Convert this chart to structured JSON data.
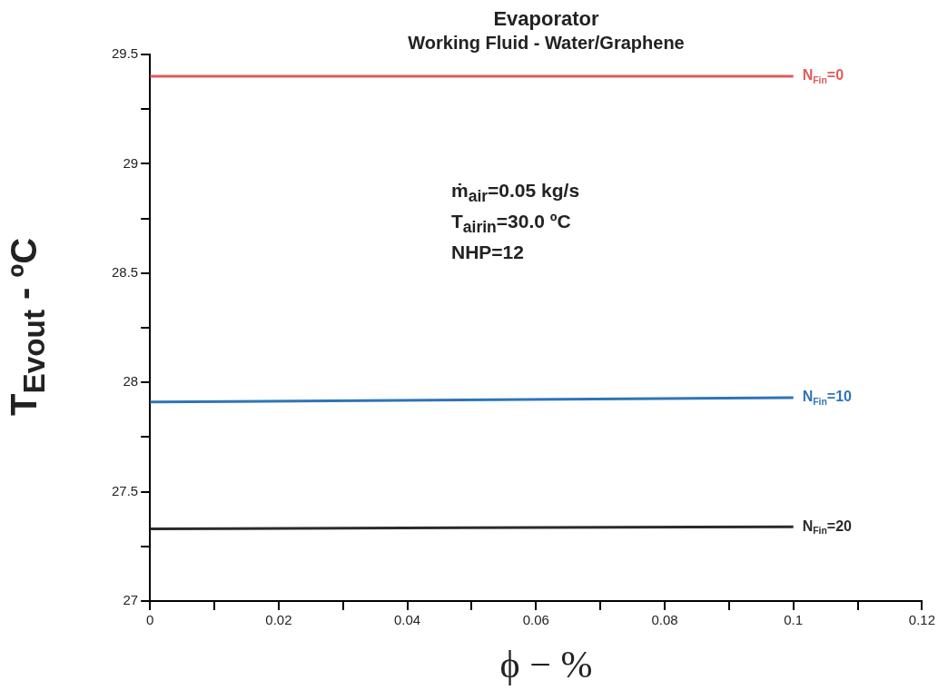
{
  "chart_data": {
    "type": "line",
    "title": "Evaporator",
    "subtitle": "Working Fluid - Water/Graphene",
    "xlabel": "ϕ − %",
    "ylabel": "T$_{Evout}$ - ºC",
    "annotations": [
      "ṁ$_{air}$=0.05 kg/s",
      "T$_{airin}$=30.0 ºC",
      "NHP=12"
    ],
    "x": [
      0,
      0.1
    ],
    "series": [
      {
        "name": "N$_{Fin}$=0",
        "color": "#e05a5a",
        "values": [
          29.4,
          29.4
        ]
      },
      {
        "name": "N$_{Fin}$=10",
        "color": "#2e75b6",
        "values": [
          27.91,
          27.93
        ]
      },
      {
        "name": "N$_{Fin}$=20",
        "color": "#2b2b2b",
        "values": [
          27.33,
          27.34
        ]
      }
    ],
    "xlim": [
      0,
      0.12
    ],
    "xticks": [
      0,
      {
        "value": 0.01,
        "label": null
      },
      0.02,
      {
        "value": 0.03,
        "label": null
      },
      0.04,
      {
        "value": 0.05,
        "label": null
      },
      0.06,
      {
        "value": 0.07,
        "label": null
      },
      0.08,
      {
        "value": 0.09,
        "label": null
      },
      {
        "value": 0.1,
        "label": "0.1"
      },
      {
        "value": 0.11,
        "label": null
      },
      0.12
    ],
    "ylim": [
      27,
      29.5
    ],
    "yticks": [
      27,
      {
        "value": 27.25,
        "label": null
      },
      27.5,
      {
        "value": 27.75,
        "label": null
      },
      28,
      {
        "value": 28.25,
        "label": null
      },
      28.5,
      {
        "value": 28.75,
        "label": null
      },
      29,
      {
        "value": 29.25,
        "label": null
      },
      29.5
    ],
    "legend": false,
    "marker": "none",
    "line_style": "solid"
  }
}
